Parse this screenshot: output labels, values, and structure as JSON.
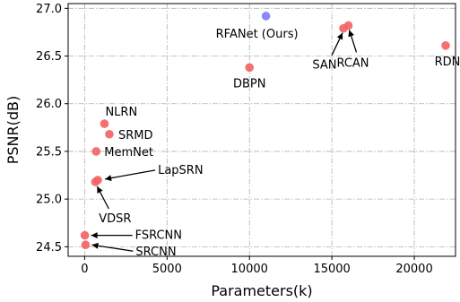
{
  "chart_data": {
    "type": "scatter",
    "xlabel": "Parameters(k)",
    "ylabel": "PSNR(dB)",
    "xlim": [
      -1000,
      22500
    ],
    "ylim": [
      24.4,
      27.05
    ],
    "xticks": [
      0,
      5000,
      10000,
      15000,
      20000
    ],
    "xtick_labels": [
      "0",
      "5000",
      "10000",
      "15000",
      "20000"
    ],
    "yticks": [
      24.5,
      25.0,
      25.5,
      26.0,
      26.5,
      27.0
    ],
    "ytick_labels": [
      "24.5",
      "25.0",
      "25.5",
      "26.0",
      "26.5",
      "27.0"
    ],
    "grid": true,
    "colors": {
      "others": "#f26262",
      "ours": "#7b7bf5",
      "ours_label": "#2020e0"
    },
    "points": [
      {
        "label": "RFANet (Ours)",
        "x": 11000,
        "y": 26.92,
        "highlight": true
      },
      {
        "label": "RCAN",
        "x": 16000,
        "y": 26.82
      },
      {
        "label": "SAN",
        "x": 15700,
        "y": 26.79
      },
      {
        "label": "RDN",
        "x": 21900,
        "y": 26.61
      },
      {
        "label": "DBPN",
        "x": 10000,
        "y": 26.38
      },
      {
        "label": "NLRN",
        "x": 1200,
        "y": 25.79
      },
      {
        "label": "SRMD",
        "x": 1500,
        "y": 25.68
      },
      {
        "label": "MemNet",
        "x": 700,
        "y": 25.5
      },
      {
        "label": "LapSRN",
        "x": 800,
        "y": 25.2
      },
      {
        "label": "VDSR",
        "x": 650,
        "y": 25.18
      },
      {
        "label": "FSRCNN",
        "x": 12,
        "y": 24.62
      },
      {
        "label": "SRCNN",
        "x": 57,
        "y": 24.52
      }
    ]
  }
}
